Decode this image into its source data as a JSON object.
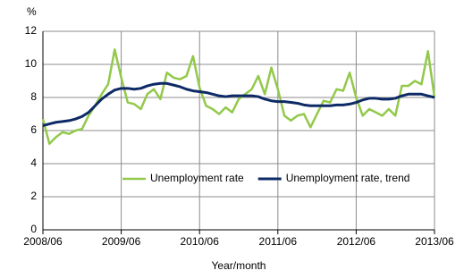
{
  "chart_data": {
    "type": "line",
    "y_label": "%",
    "x_label": "Year/month",
    "categories": [
      "2008/06",
      null,
      null,
      null,
      null,
      null,
      null,
      null,
      null,
      null,
      null,
      null,
      "2009/06",
      null,
      null,
      null,
      null,
      null,
      null,
      null,
      null,
      null,
      null,
      null,
      "2010/06",
      null,
      null,
      null,
      null,
      null,
      null,
      null,
      null,
      null,
      null,
      null,
      "2011/06",
      null,
      null,
      null,
      null,
      null,
      null,
      null,
      null,
      null,
      null,
      null,
      "2012/06",
      null,
      null,
      null,
      null,
      null,
      null,
      null,
      null,
      null,
      null,
      null,
      "2013/06"
    ],
    "series": [
      {
        "name": "Unemployment rate",
        "color": "#92c94a",
        "width": 2.5,
        "values": [
          6.7,
          5.2,
          5.6,
          5.9,
          5.8,
          6.0,
          6.1,
          6.9,
          7.5,
          8.2,
          8.8,
          10.9,
          9.2,
          7.7,
          7.6,
          7.3,
          8.2,
          8.5,
          7.9,
          9.5,
          9.2,
          9.1,
          9.3,
          10.5,
          8.6,
          7.5,
          7.3,
          7.0,
          7.4,
          7.1,
          7.9,
          8.2,
          8.5,
          9.3,
          8.2,
          9.8,
          8.5,
          6.9,
          6.6,
          6.9,
          7.0,
          6.2,
          7.0,
          7.8,
          7.7,
          8.5,
          8.4,
          9.5,
          8.0,
          6.9,
          7.3,
          7.1,
          6.9,
          7.3,
          6.9,
          8.7,
          8.7,
          9.0,
          8.8,
          10.8,
          8.0
        ]
      },
      {
        "name": "Unemployment rate, trend",
        "color": "#0e2a66",
        "width": 3,
        "values": [
          6.3,
          6.4,
          6.5,
          6.55,
          6.6,
          6.7,
          6.85,
          7.1,
          7.5,
          7.9,
          8.2,
          8.45,
          8.55,
          8.55,
          8.5,
          8.55,
          8.7,
          8.8,
          8.85,
          8.85,
          8.75,
          8.65,
          8.5,
          8.4,
          8.35,
          8.3,
          8.2,
          8.1,
          8.05,
          8.1,
          8.1,
          8.1,
          8.1,
          8.05,
          7.9,
          7.8,
          7.75,
          7.75,
          7.7,
          7.65,
          7.55,
          7.5,
          7.5,
          7.5,
          7.5,
          7.55,
          7.55,
          7.6,
          7.7,
          7.85,
          7.95,
          7.95,
          7.9,
          7.9,
          7.95,
          8.1,
          8.2,
          8.2,
          8.2,
          8.1,
          8.0
        ]
      }
    ],
    "ylim": [
      0,
      12
    ],
    "yticks": [
      0,
      2,
      4,
      6,
      8,
      10,
      12
    ],
    "grid": true,
    "legend": "lower right"
  }
}
